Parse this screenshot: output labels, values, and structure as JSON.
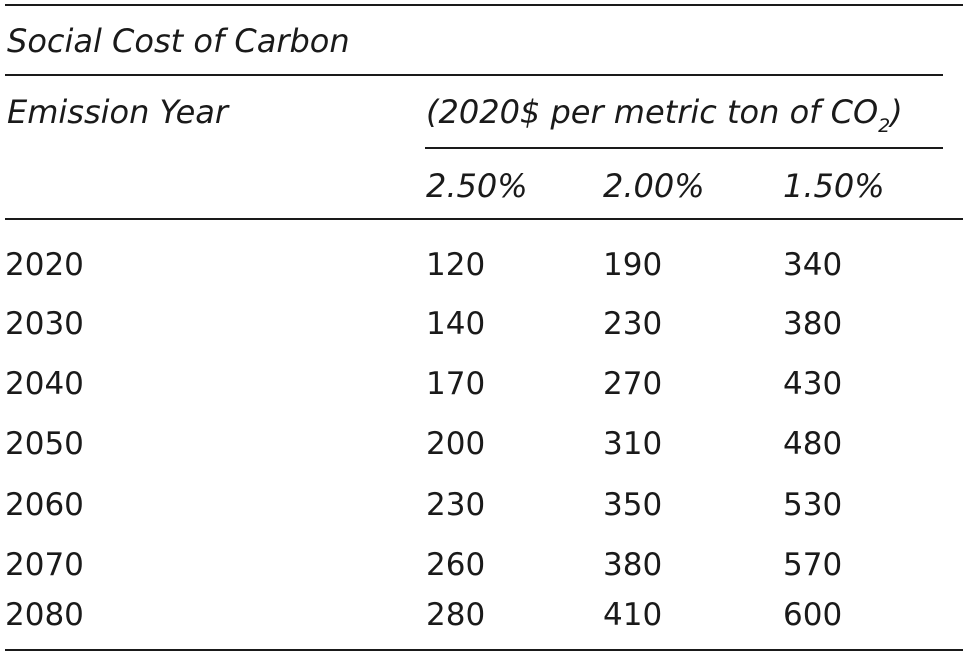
{
  "title": "Social Cost of Carbon",
  "header": {
    "row_label": "Emission Year",
    "units_text": "(2020$ per metric ton of CO",
    "units_subscript": "2",
    "units_close": ")",
    "rates": [
      "2.50%",
      "2.00%",
      "1.50%"
    ]
  },
  "rows": [
    {
      "year": "2020",
      "values": [
        "120",
        "190",
        "340"
      ]
    },
    {
      "year": "2030",
      "values": [
        "140",
        "230",
        "380"
      ]
    },
    {
      "year": "2040",
      "values": [
        "170",
        "270",
        "430"
      ]
    },
    {
      "year": "2050",
      "values": [
        "200",
        "310",
        "480"
      ]
    },
    {
      "year": "2060",
      "values": [
        "230",
        "350",
        "530"
      ]
    },
    {
      "year": "2070",
      "values": [
        "260",
        "380",
        "570"
      ]
    },
    {
      "year": "2080",
      "values": [
        "280",
        "410",
        "600"
      ]
    }
  ]
}
